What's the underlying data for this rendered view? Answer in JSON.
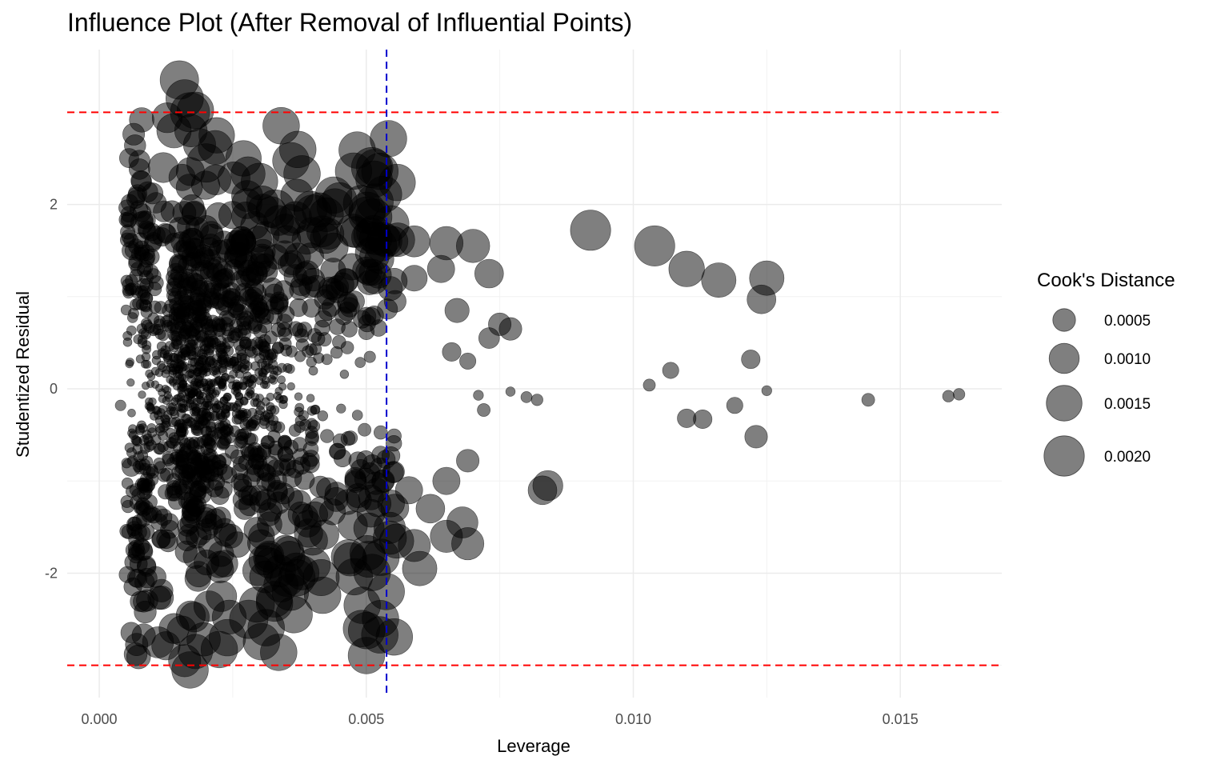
{
  "chart_data": {
    "type": "scatter",
    "title": "Influence Plot (After Removal of Influential Points)",
    "xlabel": "Leverage",
    "ylabel": "Studentized Residual",
    "xlim": [
      -0.0006,
      0.0169
    ],
    "ylim": [
      -3.35,
      3.68
    ],
    "x_ticks": [
      0.0,
      0.005,
      0.01,
      0.015
    ],
    "x_tick_labels": [
      "0.000",
      "0.005",
      "0.010",
      "0.015"
    ],
    "y_ticks": [
      -2,
      0,
      2
    ],
    "y_tick_labels": [
      "-2",
      "0",
      "2"
    ],
    "grid": true,
    "reference_lines": {
      "horizontal": [
        3,
        -3
      ],
      "horizontal_color": "#ff0000",
      "vertical": [
        0.00538
      ],
      "vertical_color": "#0000cd"
    },
    "point_color": "#000000",
    "point_opacity": 0.5,
    "size_variable": "Cook's Distance",
    "legend": {
      "title": "Cook's Distance",
      "position": "right",
      "entries": [
        {
          "label": "0.0005",
          "value": 0.0005
        },
        {
          "label": "0.0010",
          "value": 0.001
        },
        {
          "label": "0.0015",
          "value": 0.0015
        },
        {
          "label": "0.0020",
          "value": 0.002
        }
      ]
    },
    "points": [
      {
        "x": 0.0015,
        "y": 3.35,
        "cook": 0.0018
      },
      {
        "x": 0.0016,
        "y": 3.15,
        "cook": 0.0017
      },
      {
        "x": 0.0017,
        "y": 3.0,
        "cook": 0.0019
      },
      {
        "x": 0.0018,
        "y": 3.02,
        "cook": 0.0016
      },
      {
        "x": 0.0014,
        "y": 2.8,
        "cook": 0.0014
      },
      {
        "x": 0.0022,
        "y": 2.75,
        "cook": 0.0015
      },
      {
        "x": 0.0027,
        "y": 2.5,
        "cook": 0.0015
      },
      {
        "x": 0.0012,
        "y": 2.4,
        "cook": 0.001
      },
      {
        "x": 0.002,
        "y": 2.45,
        "cook": 0.0018
      },
      {
        "x": 0.003,
        "y": 2.25,
        "cook": 0.0016
      },
      {
        "x": 0.0037,
        "y": 2.1,
        "cook": 0.0012
      },
      {
        "x": 0.0045,
        "y": 2.05,
        "cook": 0.0014
      },
      {
        "x": 0.0051,
        "y": 2.4,
        "cook": 0.002
      },
      {
        "x": 0.0033,
        "y": 1.95,
        "cook": 0.0018
      },
      {
        "x": 0.004,
        "y": 1.9,
        "cook": 0.0017
      },
      {
        "x": 0.0048,
        "y": 1.7,
        "cook": 0.0011
      },
      {
        "x": 0.0055,
        "y": 1.6,
        "cook": 0.001
      },
      {
        "x": 0.0059,
        "y": 1.6,
        "cook": 0.0011
      },
      {
        "x": 0.0065,
        "y": 1.58,
        "cook": 0.0013
      },
      {
        "x": 0.007,
        "y": 1.55,
        "cook": 0.0013
      },
      {
        "x": 0.0073,
        "y": 1.25,
        "cook": 0.0009
      },
      {
        "x": 0.0092,
        "y": 1.72,
        "cook": 0.002
      },
      {
        "x": 0.0104,
        "y": 1.55,
        "cook": 0.002
      },
      {
        "x": 0.011,
        "y": 1.3,
        "cook": 0.0015
      },
      {
        "x": 0.0116,
        "y": 1.18,
        "cook": 0.0014
      },
      {
        "x": 0.0125,
        "y": 1.2,
        "cook": 0.0014
      },
      {
        "x": 0.0124,
        "y": 0.97,
        "cook": 0.0009
      },
      {
        "x": 0.0064,
        "y": 1.3,
        "cook": 0.0008
      },
      {
        "x": 0.0059,
        "y": 1.2,
        "cook": 0.0007
      },
      {
        "x": 0.0067,
        "y": 0.85,
        "cook": 0.0006
      },
      {
        "x": 0.0075,
        "y": 0.7,
        "cook": 0.0005
      },
      {
        "x": 0.0077,
        "y": 0.65,
        "cook": 0.0005
      },
      {
        "x": 0.0073,
        "y": 0.55,
        "cook": 0.0004
      },
      {
        "x": 0.0069,
        "y": 0.3,
        "cook": 0.0002
      },
      {
        "x": 0.0066,
        "y": 0.4,
        "cook": 0.0003
      },
      {
        "x": 0.0122,
        "y": 0.32,
        "cook": 0.0003
      },
      {
        "x": 0.0107,
        "y": 0.2,
        "cook": 0.0002
      },
      {
        "x": 0.0103,
        "y": 0.04,
        "cook": 8e-05
      },
      {
        "x": 0.0125,
        "y": -0.02,
        "cook": 4e-05
      },
      {
        "x": 0.0119,
        "y": -0.18,
        "cook": 0.0002
      },
      {
        "x": 0.011,
        "y": -0.32,
        "cook": 0.0003
      },
      {
        "x": 0.0113,
        "y": -0.33,
        "cook": 0.0003
      },
      {
        "x": 0.0123,
        "y": -0.52,
        "cook": 0.0005
      },
      {
        "x": 0.0144,
        "y": -0.12,
        "cook": 0.0001
      },
      {
        "x": 0.0159,
        "y": -0.08,
        "cook": 7e-05
      },
      {
        "x": 0.0161,
        "y": -0.06,
        "cook": 7e-05
      },
      {
        "x": 0.0077,
        "y": -0.03,
        "cook": 3e-05
      },
      {
        "x": 0.008,
        "y": -0.09,
        "cook": 6e-05
      },
      {
        "x": 0.0082,
        "y": -0.12,
        "cook": 7e-05
      },
      {
        "x": 0.0072,
        "y": -0.23,
        "cook": 0.0001
      },
      {
        "x": 0.0071,
        "y": -0.07,
        "cook": 4e-05
      },
      {
        "x": 0.0084,
        "y": -1.05,
        "cook": 0.001
      },
      {
        "x": 0.0083,
        "y": -1.1,
        "cook": 0.0009
      },
      {
        "x": 0.0069,
        "y": -0.78,
        "cook": 0.0005
      },
      {
        "x": 0.0065,
        "y": -1.0,
        "cook": 0.0008
      },
      {
        "x": 0.0068,
        "y": -1.45,
        "cook": 0.0011
      },
      {
        "x": 0.0065,
        "y": -1.6,
        "cook": 0.0012
      },
      {
        "x": 0.0069,
        "y": -1.68,
        "cook": 0.0012
      },
      {
        "x": 0.0059,
        "y": -1.7,
        "cook": 0.0012
      },
      {
        "x": 0.006,
        "y": -1.95,
        "cook": 0.0014
      },
      {
        "x": 0.0062,
        "y": -1.3,
        "cook": 0.0009
      },
      {
        "x": 0.0058,
        "y": -1.1,
        "cook": 0.0008
      },
      {
        "x": 0.0047,
        "y": -1.85,
        "cook": 0.0013
      },
      {
        "x": 0.0037,
        "y": -2.05,
        "cook": 0.0016
      },
      {
        "x": 0.0028,
        "y": -2.5,
        "cook": 0.0018
      },
      {
        "x": 0.0024,
        "y": -2.7,
        "cook": 0.0016
      },
      {
        "x": 0.0018,
        "y": -2.85,
        "cook": 0.0014
      },
      {
        "x": 0.0017,
        "y": -3.05,
        "cook": 0.0016
      },
      {
        "x": 0.0016,
        "y": -2.95,
        "cook": 0.0012
      },
      {
        "x": 0.0011,
        "y": -2.75,
        "cook": 0.0011
      },
      {
        "x": 0.0014,
        "y": -2.6,
        "cook": 0.001
      },
      {
        "x": 0.0008,
        "y": -1.75,
        "cook": 0.0004
      },
      {
        "x": 0.0006,
        "y": -0.85,
        "cook": 0.0003
      },
      {
        "x": 0.0006,
        "y": 1.5,
        "cook": 0.0003
      },
      {
        "x": 0.0008,
        "y": 1.8,
        "cook": 0.0005
      },
      {
        "x": 0.0004,
        "y": -0.18,
        "cook": 5e-05
      }
    ],
    "cloud": {
      "note": "dense overlapping cluster of many more points with leverage between 0.0004 and 0.0055 and residuals between -3 and 3"
    }
  }
}
